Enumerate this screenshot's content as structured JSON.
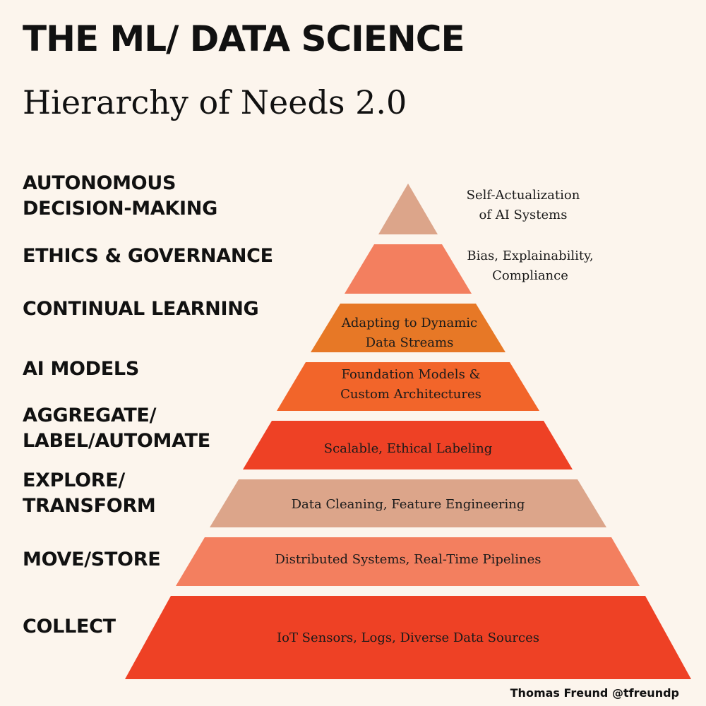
{
  "title": {
    "main": "THE ML/ DATA SCIENCE",
    "sub": "Hierarchy of Needs 2.0"
  },
  "levels": [
    {
      "label_lines": [
        "AUTONOMOUS",
        "DECISION-MAKING"
      ],
      "desc_lines": [
        "Self-Actualization",
        "of AI Systems"
      ],
      "color": "#dca58a"
    },
    {
      "label_lines": [
        "ETHICS & GOVERNANCE"
      ],
      "desc_lines": [
        "Bias, Explainability,",
        "Compliance"
      ],
      "color": "#f37f5f"
    },
    {
      "label_lines": [
        "CONTINUAL LEARNING"
      ],
      "desc_lines": [
        "Adapting to Dynamic",
        "Data Streams"
      ],
      "color": "#e77826"
    },
    {
      "label_lines": [
        "AI MODELS"
      ],
      "desc_lines": [
        "Foundation Models &",
        "Custom Architectures"
      ],
      "color": "#f2652a"
    },
    {
      "label_lines": [
        "AGGREGATE/",
        "LABEL/AUTOMATE"
      ],
      "desc_lines": [
        "Scalable, Ethical Labeling"
      ],
      "color": "#ee4125"
    },
    {
      "label_lines": [
        "EXPLORE/",
        "TRANSFORM"
      ],
      "desc_lines": [
        "Data Cleaning, Feature Engineering"
      ],
      "color": "#dca58a"
    },
    {
      "label_lines": [
        "MOVE/STORE"
      ],
      "desc_lines": [
        "Distributed Systems, Real-Time Pipelines"
      ],
      "color": "#f37f5f"
    },
    {
      "label_lines": [
        "COLLECT"
      ],
      "desc_lines": [
        "IoT Sensors, Logs, Diverse Data Sources"
      ],
      "color": "#ee4125"
    }
  ],
  "credit": "Thomas Freund @tfreundp"
}
